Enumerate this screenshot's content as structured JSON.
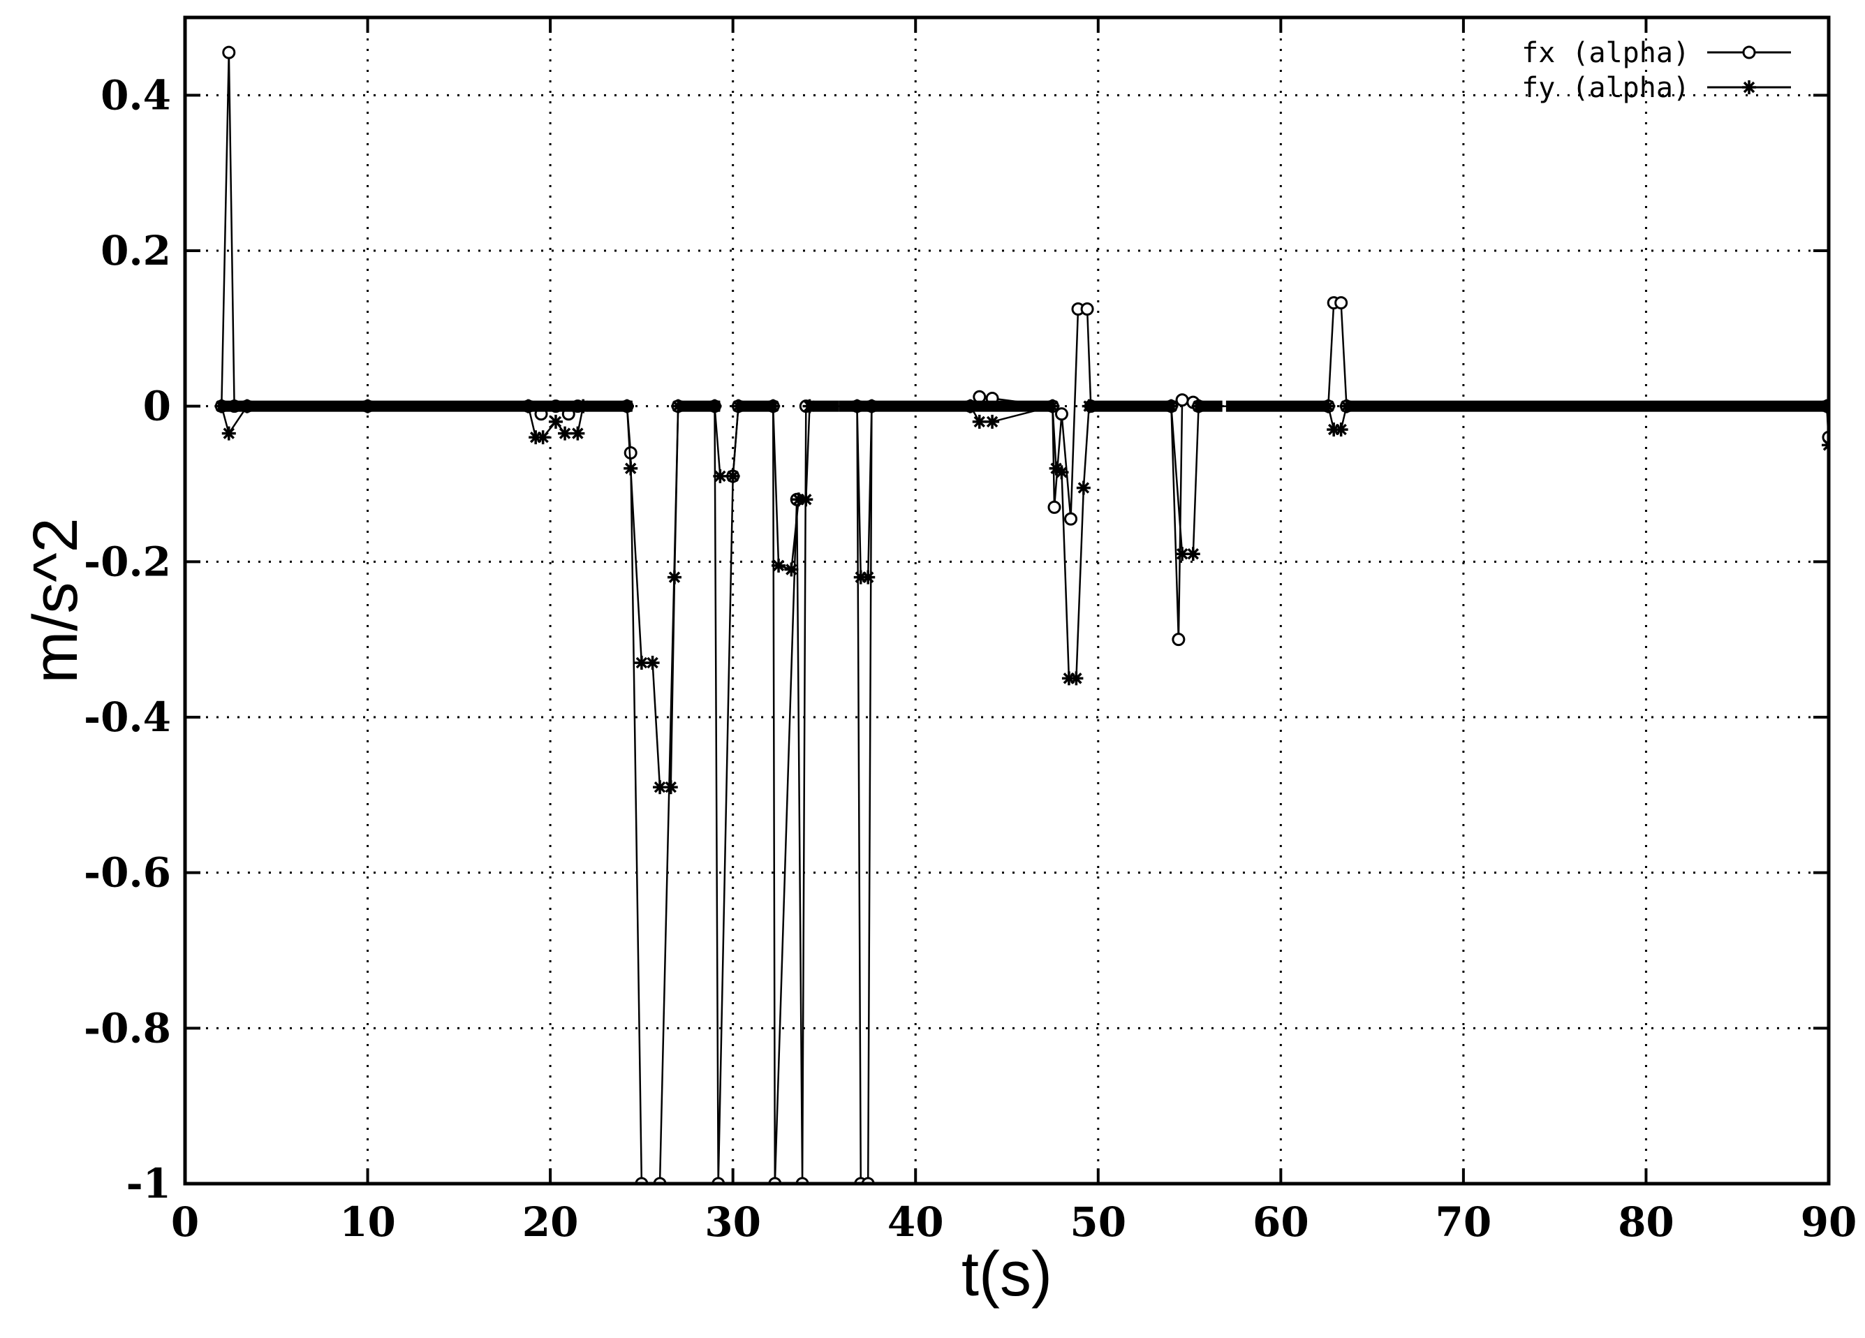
{
  "chart_data": {
    "type": "line",
    "title": "",
    "xlabel": "t(s)",
    "ylabel": "m/s^2",
    "xlim": [
      0,
      90
    ],
    "ylim": [
      -1,
      0.5
    ],
    "xticks": [
      0,
      10,
      20,
      30,
      40,
      50,
      60,
      70,
      80,
      90
    ],
    "xtick_labels": [
      "0",
      "10",
      "20",
      "30",
      "40",
      "50",
      "60",
      "70",
      "80",
      "90"
    ],
    "yticks": [
      0.4,
      0.2,
      0,
      -0.2,
      -0.4,
      -0.6,
      -0.8,
      -1
    ],
    "ytick_labels": [
      "0.4",
      "0.2",
      "0",
      "-0.2",
      "-0.4",
      "-0.6",
      "-0.8",
      "-1"
    ],
    "grid": true,
    "legend_position": "top-right",
    "series": [
      {
        "name": "fx (alpha)",
        "marker": "circle",
        "points": [
          [
            2.0,
            0
          ],
          [
            2.4,
            0.455
          ],
          [
            2.7,
            0.0
          ],
          [
            3.4,
            0
          ],
          [
            10,
            0
          ],
          [
            18.8,
            0
          ],
          [
            19.5,
            -0.01
          ],
          [
            20.3,
            0
          ],
          [
            21.0,
            -0.01
          ],
          [
            21.5,
            0
          ],
          [
            24.2,
            0
          ],
          [
            24.4,
            -0.06
          ],
          [
            25.0,
            -1.0
          ],
          [
            26.0,
            -1.0
          ],
          [
            27.0,
            0
          ],
          [
            29.0,
            0
          ],
          [
            29.2,
            -1.0
          ],
          [
            30.0,
            -0.09
          ],
          [
            30.3,
            0
          ],
          [
            32.2,
            0
          ],
          [
            32.3,
            -1.0
          ],
          [
            33.5,
            -0.12
          ],
          [
            33.8,
            -1.0
          ],
          [
            34.0,
            0
          ],
          [
            36.8,
            0
          ],
          [
            37.0,
            -1.0
          ],
          [
            37.4,
            -1.0
          ],
          [
            37.6,
            0
          ],
          [
            43.0,
            0
          ],
          [
            43.5,
            0.012
          ],
          [
            44.2,
            0.01
          ],
          [
            47.5,
            0
          ],
          [
            47.6,
            -0.13
          ],
          [
            48.0,
            -0.01
          ],
          [
            48.5,
            -0.145
          ],
          [
            48.9,
            0.125
          ],
          [
            49.4,
            0.125
          ],
          [
            49.6,
            0
          ],
          [
            54.0,
            0
          ],
          [
            54.4,
            -0.3
          ],
          [
            54.6,
            0.008
          ],
          [
            55.2,
            0.005
          ],
          [
            55.5,
            0
          ],
          [
            62.6,
            0
          ],
          [
            62.9,
            0.133
          ],
          [
            63.3,
            0.133
          ],
          [
            63.6,
            0
          ],
          [
            89.9,
            0
          ],
          [
            90,
            -0.04
          ]
        ]
      },
      {
        "name": "fy (alpha)",
        "marker": "star",
        "points": [
          [
            2.0,
            0
          ],
          [
            2.4,
            -0.035
          ],
          [
            3.4,
            0
          ],
          [
            10,
            0
          ],
          [
            18.8,
            0
          ],
          [
            19.2,
            -0.04
          ],
          [
            19.6,
            -0.04
          ],
          [
            20.3,
            -0.02
          ],
          [
            20.8,
            -0.035
          ],
          [
            21.5,
            -0.035
          ],
          [
            21.8,
            0
          ],
          [
            24.2,
            0
          ],
          [
            24.4,
            -0.08
          ],
          [
            25.0,
            -0.33
          ],
          [
            25.6,
            -0.33
          ],
          [
            26.0,
            -0.49
          ],
          [
            26.6,
            -0.49
          ],
          [
            26.8,
            -0.22
          ],
          [
            27.0,
            0
          ],
          [
            29.0,
            0
          ],
          [
            29.3,
            -0.09
          ],
          [
            30.0,
            -0.09
          ],
          [
            30.3,
            0
          ],
          [
            32.2,
            0
          ],
          [
            32.5,
            -0.205
          ],
          [
            33.2,
            -0.21
          ],
          [
            33.6,
            -0.12
          ],
          [
            34.0,
            -0.12
          ],
          [
            34.2,
            0
          ],
          [
            36.8,
            0
          ],
          [
            37.0,
            -0.22
          ],
          [
            37.4,
            -0.22
          ],
          [
            37.6,
            0
          ],
          [
            43.0,
            0
          ],
          [
            43.5,
            -0.02
          ],
          [
            44.2,
            -0.02
          ],
          [
            47.5,
            0
          ],
          [
            47.7,
            -0.08
          ],
          [
            48.0,
            -0.085
          ],
          [
            48.4,
            -0.35
          ],
          [
            48.8,
            -0.35
          ],
          [
            49.2,
            -0.105
          ],
          [
            49.5,
            0
          ],
          [
            54.0,
            0
          ],
          [
            54.6,
            -0.19
          ],
          [
            55.2,
            -0.19
          ],
          [
            55.5,
            0
          ],
          [
            62.6,
            0
          ],
          [
            62.9,
            -0.03
          ],
          [
            63.3,
            -0.03
          ],
          [
            63.6,
            0
          ],
          [
            89.9,
            0
          ],
          [
            90,
            -0.05
          ]
        ]
      }
    ]
  }
}
